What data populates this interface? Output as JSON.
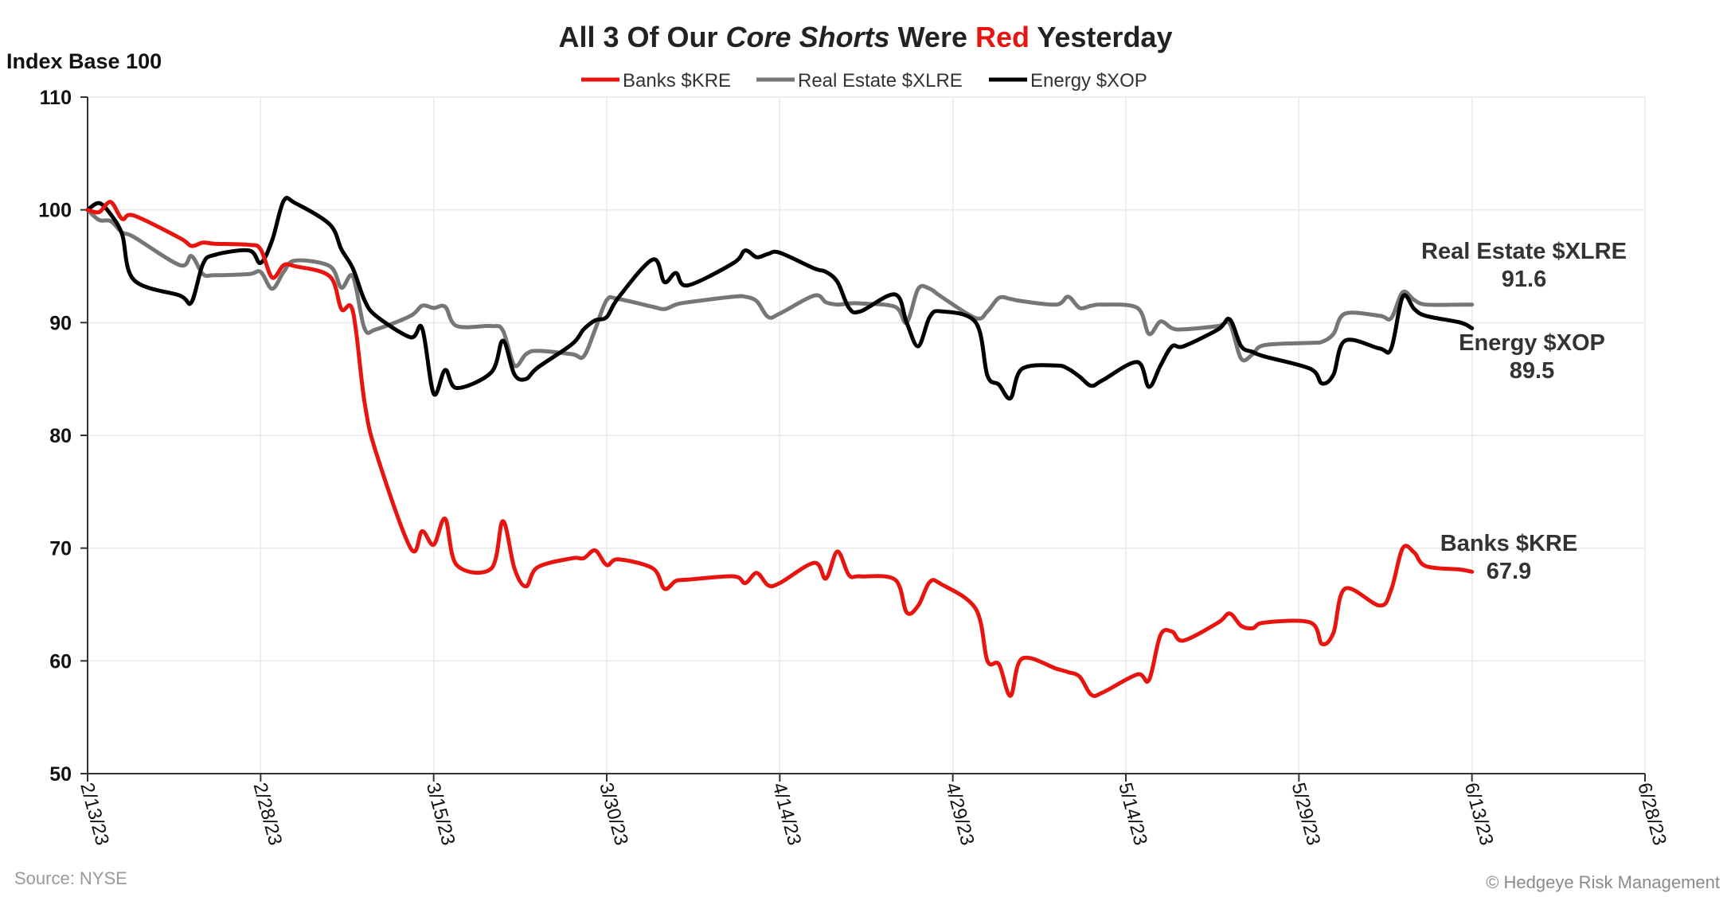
{
  "chart_data": {
    "type": "line",
    "title_parts": [
      {
        "text": "All 3 Of Our ",
        "style": "normal"
      },
      {
        "text": "Core Shorts",
        "style": "italic"
      },
      {
        "text": " Were ",
        "style": "normal"
      },
      {
        "text": "Red",
        "style": "red"
      },
      {
        "text": " Yesterday",
        "style": "normal"
      }
    ],
    "ylabel": "Index Base 100",
    "ylim": [
      50,
      110
    ],
    "yticks": [
      50,
      60,
      70,
      80,
      90,
      100,
      110
    ],
    "xlim": [
      "2023-02-13",
      "2023-06-28"
    ],
    "xticks": [
      {
        "date": "2023-02-13",
        "label": "2/13/23"
      },
      {
        "date": "2023-02-28",
        "label": "2/28/23"
      },
      {
        "date": "2023-03-15",
        "label": "3/15/23"
      },
      {
        "date": "2023-03-30",
        "label": "3/30/23"
      },
      {
        "date": "2023-04-14",
        "label": "4/14/23"
      },
      {
        "date": "2023-04-29",
        "label": "4/29/23"
      },
      {
        "date": "2023-05-14",
        "label": "5/14/23"
      },
      {
        "date": "2023-05-29",
        "label": "5/29/23"
      },
      {
        "date": "2023-06-13",
        "label": "6/13/23"
      },
      {
        "date": "2023-06-28",
        "label": "6/28/23"
      }
    ],
    "grid": true,
    "legend": "top-center",
    "series": [
      {
        "name": "Banks $KRE",
        "color": "#e8140f",
        "end_label": "Banks $KRE",
        "end_value": "67.9",
        "points": [
          [
            "2023-02-13",
            100
          ],
          [
            "2023-02-14",
            99.8
          ],
          [
            "2023-02-15",
            100.7
          ],
          [
            "2023-02-16",
            99.2
          ],
          [
            "2023-02-17",
            99.5
          ],
          [
            "2023-02-21",
            97.5
          ],
          [
            "2023-02-22",
            96.8
          ],
          [
            "2023-02-23",
            97.1
          ],
          [
            "2023-02-24",
            97.0
          ],
          [
            "2023-02-27",
            96.9
          ],
          [
            "2023-02-28",
            96.5
          ],
          [
            "2023-03-01",
            94.0
          ],
          [
            "2023-03-02",
            95.1
          ],
          [
            "2023-03-03",
            95.0
          ],
          [
            "2023-03-06",
            94.1
          ],
          [
            "2023-03-07",
            91.2
          ],
          [
            "2023-03-08",
            91.0
          ],
          [
            "2023-03-09",
            83.0
          ],
          [
            "2023-03-10",
            78.5
          ],
          [
            "2023-03-13",
            70.0
          ],
          [
            "2023-03-14",
            71.5
          ],
          [
            "2023-03-15",
            70.3
          ],
          [
            "2023-03-16",
            72.6
          ],
          [
            "2023-03-17",
            68.5
          ],
          [
            "2023-03-20",
            68.2
          ],
          [
            "2023-03-21",
            72.4
          ],
          [
            "2023-03-22",
            68.2
          ],
          [
            "2023-03-23",
            66.6
          ],
          [
            "2023-03-24",
            68.3
          ],
          [
            "2023-03-27",
            69.1
          ],
          [
            "2023-03-28",
            69.1
          ],
          [
            "2023-03-29",
            69.8
          ],
          [
            "2023-03-30",
            68.5
          ],
          [
            "2023-03-31",
            69.0
          ],
          [
            "2023-04-03",
            68.2
          ],
          [
            "2023-04-04",
            66.4
          ],
          [
            "2023-04-05",
            67.1
          ],
          [
            "2023-04-06",
            67.2
          ],
          [
            "2023-04-10",
            67.5
          ],
          [
            "2023-04-11",
            66.9
          ],
          [
            "2023-04-12",
            67.8
          ],
          [
            "2023-04-13",
            66.7
          ],
          [
            "2023-04-14",
            66.9
          ],
          [
            "2023-04-17",
            68.7
          ],
          [
            "2023-04-18",
            67.3
          ],
          [
            "2023-04-19",
            69.7
          ],
          [
            "2023-04-20",
            67.6
          ],
          [
            "2023-04-21",
            67.5
          ],
          [
            "2023-04-24",
            67.2
          ],
          [
            "2023-04-25",
            64.3
          ],
          [
            "2023-04-26",
            64.9
          ],
          [
            "2023-04-27",
            67.0
          ],
          [
            "2023-04-28",
            66.8
          ],
          [
            "2023-05-01",
            64.6
          ],
          [
            "2023-05-02",
            60.0
          ],
          [
            "2023-05-03",
            59.7
          ],
          [
            "2023-05-04",
            56.9
          ],
          [
            "2023-05-05",
            60.2
          ],
          [
            "2023-05-08",
            59.3
          ],
          [
            "2023-05-09",
            59.0
          ],
          [
            "2023-05-10",
            58.6
          ],
          [
            "2023-05-11",
            57.0
          ],
          [
            "2023-05-12",
            57.2
          ],
          [
            "2023-05-15",
            58.8
          ],
          [
            "2023-05-16",
            58.3
          ],
          [
            "2023-05-17",
            62.3
          ],
          [
            "2023-05-18",
            62.6
          ],
          [
            "2023-05-19",
            61.8
          ],
          [
            "2023-05-22",
            63.4
          ],
          [
            "2023-05-23",
            64.2
          ],
          [
            "2023-05-24",
            63.1
          ],
          [
            "2023-05-25",
            62.9
          ],
          [
            "2023-05-26",
            63.4
          ],
          [
            "2023-05-30",
            63.4
          ],
          [
            "2023-05-31",
            61.5
          ],
          [
            "2023-06-01",
            62.5
          ],
          [
            "2023-06-02",
            66.4
          ],
          [
            "2023-06-05",
            64.9
          ],
          [
            "2023-06-06",
            66.3
          ],
          [
            "2023-06-07",
            70.0
          ],
          [
            "2023-06-08",
            69.6
          ],
          [
            "2023-06-09",
            68.4
          ],
          [
            "2023-06-12",
            68.1
          ],
          [
            "2023-06-13",
            67.9
          ]
        ]
      },
      {
        "name": "Real Estate $XLRE",
        "color": "#767676",
        "end_label": "Real Estate $XLRE",
        "end_value": "91.6",
        "points": [
          [
            "2023-02-13",
            100
          ],
          [
            "2023-02-14",
            99.1
          ],
          [
            "2023-02-15",
            99.0
          ],
          [
            "2023-02-16",
            98.0
          ],
          [
            "2023-02-17",
            97.6
          ],
          [
            "2023-02-21",
            95.1
          ],
          [
            "2023-02-22",
            95.9
          ],
          [
            "2023-02-23",
            94.3
          ],
          [
            "2023-02-24",
            94.2
          ],
          [
            "2023-02-27",
            94.3
          ],
          [
            "2023-02-28",
            94.5
          ],
          [
            "2023-03-01",
            93.0
          ],
          [
            "2023-03-02",
            94.5
          ],
          [
            "2023-03-03",
            95.5
          ],
          [
            "2023-03-06",
            95.0
          ],
          [
            "2023-03-07",
            93.1
          ],
          [
            "2023-03-08",
            94.1
          ],
          [
            "2023-03-09",
            89.5
          ],
          [
            "2023-03-10",
            89.4
          ],
          [
            "2023-03-13",
            90.6
          ],
          [
            "2023-03-14",
            91.5
          ],
          [
            "2023-03-15",
            91.3
          ],
          [
            "2023-03-16",
            91.4
          ],
          [
            "2023-03-17",
            89.7
          ],
          [
            "2023-03-20",
            89.7
          ],
          [
            "2023-03-21",
            89.3
          ],
          [
            "2023-03-22",
            86.2
          ],
          [
            "2023-03-23",
            87.2
          ],
          [
            "2023-03-24",
            87.5
          ],
          [
            "2023-03-27",
            87.2
          ],
          [
            "2023-03-28",
            87.0
          ],
          [
            "2023-03-29",
            89.4
          ],
          [
            "2023-03-30",
            92.0
          ],
          [
            "2023-03-31",
            92.1
          ],
          [
            "2023-04-03",
            91.4
          ],
          [
            "2023-04-04",
            91.2
          ],
          [
            "2023-04-05",
            91.6
          ],
          [
            "2023-04-06",
            91.8
          ],
          [
            "2023-04-10",
            92.3
          ],
          [
            "2023-04-11",
            92.3
          ],
          [
            "2023-04-12",
            91.9
          ],
          [
            "2023-04-13",
            90.5
          ],
          [
            "2023-04-14",
            90.8
          ],
          [
            "2023-04-17",
            92.4
          ],
          [
            "2023-04-18",
            91.8
          ],
          [
            "2023-04-19",
            91.6
          ],
          [
            "2023-04-20",
            91.7
          ],
          [
            "2023-04-21",
            91.7
          ],
          [
            "2023-04-24",
            91.4
          ],
          [
            "2023-04-25",
            90.0
          ],
          [
            "2023-04-26",
            93.0
          ],
          [
            "2023-04-27",
            93.0
          ],
          [
            "2023-04-28",
            92.3
          ],
          [
            "2023-05-01",
            90.4
          ],
          [
            "2023-05-02",
            91.0
          ],
          [
            "2023-05-03",
            92.2
          ],
          [
            "2023-05-04",
            92.1
          ],
          [
            "2023-05-05",
            91.9
          ],
          [
            "2023-05-08",
            91.6
          ],
          [
            "2023-05-09",
            92.3
          ],
          [
            "2023-05-10",
            91.3
          ],
          [
            "2023-05-11",
            91.5
          ],
          [
            "2023-05-12",
            91.6
          ],
          [
            "2023-05-15",
            91.3
          ],
          [
            "2023-05-16",
            89.0
          ],
          [
            "2023-05-17",
            90.1
          ],
          [
            "2023-05-18",
            89.5
          ],
          [
            "2023-05-19",
            89.4
          ],
          [
            "2023-05-22",
            89.7
          ],
          [
            "2023-05-23",
            89.9
          ],
          [
            "2023-05-24",
            86.8
          ],
          [
            "2023-05-25",
            87.2
          ],
          [
            "2023-05-26",
            88.0
          ],
          [
            "2023-05-30",
            88.2
          ],
          [
            "2023-05-31",
            88.3
          ],
          [
            "2023-06-01",
            89.0
          ],
          [
            "2023-06-02",
            90.8
          ],
          [
            "2023-06-05",
            90.6
          ],
          [
            "2023-06-06",
            90.4
          ],
          [
            "2023-06-07",
            92.7
          ],
          [
            "2023-06-08",
            92.0
          ],
          [
            "2023-06-09",
            91.6
          ],
          [
            "2023-06-12",
            91.6
          ],
          [
            "2023-06-13",
            91.6
          ]
        ]
      },
      {
        "name": "Energy $XOP",
        "color": "#000000",
        "end_label": "Energy $XOP",
        "end_value": "89.5",
        "points": [
          [
            "2023-02-13",
            100
          ],
          [
            "2023-02-14",
            100.6
          ],
          [
            "2023-02-15",
            99.6
          ],
          [
            "2023-02-16",
            97.8
          ],
          [
            "2023-02-17",
            93.8
          ],
          [
            "2023-02-21",
            92.4
          ],
          [
            "2023-02-22",
            91.8
          ],
          [
            "2023-02-23",
            95.2
          ],
          [
            "2023-02-24",
            96.0
          ],
          [
            "2023-02-27",
            96.4
          ],
          [
            "2023-02-28",
            95.3
          ],
          [
            "2023-03-01",
            97.3
          ],
          [
            "2023-03-02",
            100.8
          ],
          [
            "2023-03-03",
            100.6
          ],
          [
            "2023-03-06",
            98.7
          ],
          [
            "2023-03-07",
            96.5
          ],
          [
            "2023-03-08",
            94.8
          ],
          [
            "2023-03-09",
            92.0
          ],
          [
            "2023-03-10",
            90.6
          ],
          [
            "2023-03-13",
            88.7
          ],
          [
            "2023-03-14",
            89.5
          ],
          [
            "2023-03-15",
            83.7
          ],
          [
            "2023-03-16",
            85.8
          ],
          [
            "2023-03-17",
            84.2
          ],
          [
            "2023-03-20",
            85.6
          ],
          [
            "2023-03-21",
            88.4
          ],
          [
            "2023-03-22",
            85.4
          ],
          [
            "2023-03-23",
            85.0
          ],
          [
            "2023-03-24",
            86.0
          ],
          [
            "2023-03-27",
            88.1
          ],
          [
            "2023-03-28",
            89.4
          ],
          [
            "2023-03-29",
            90.2
          ],
          [
            "2023-03-30",
            90.5
          ],
          [
            "2023-03-31",
            92.2
          ],
          [
            "2023-04-03",
            95.6
          ],
          [
            "2023-04-04",
            93.6
          ],
          [
            "2023-04-05",
            94.4
          ],
          [
            "2023-04-06",
            93.3
          ],
          [
            "2023-04-10",
            95.3
          ],
          [
            "2023-04-11",
            96.4
          ],
          [
            "2023-04-12",
            95.8
          ],
          [
            "2023-04-13",
            96.1
          ],
          [
            "2023-04-14",
            96.2
          ],
          [
            "2023-04-17",
            94.8
          ],
          [
            "2023-04-18",
            94.5
          ],
          [
            "2023-04-19",
            93.6
          ],
          [
            "2023-04-20",
            91.3
          ],
          [
            "2023-04-21",
            91.0
          ],
          [
            "2023-04-24",
            92.5
          ],
          [
            "2023-04-25",
            90.0
          ],
          [
            "2023-04-26",
            87.9
          ],
          [
            "2023-04-27",
            90.5
          ],
          [
            "2023-04-28",
            91.0
          ],
          [
            "2023-05-01",
            90.0
          ],
          [
            "2023-05-02",
            85.3
          ],
          [
            "2023-05-03",
            84.5
          ],
          [
            "2023-05-04",
            83.3
          ],
          [
            "2023-05-05",
            85.9
          ],
          [
            "2023-05-08",
            86.2
          ],
          [
            "2023-05-09",
            85.9
          ],
          [
            "2023-05-10",
            85.2
          ],
          [
            "2023-05-11",
            84.4
          ],
          [
            "2023-05-12",
            84.9
          ],
          [
            "2023-05-15",
            86.5
          ],
          [
            "2023-05-16",
            84.3
          ],
          [
            "2023-05-17",
            86.2
          ],
          [
            "2023-05-18",
            87.9
          ],
          [
            "2023-05-19",
            87.9
          ],
          [
            "2023-05-22",
            89.4
          ],
          [
            "2023-05-23",
            90.3
          ],
          [
            "2023-05-24",
            87.9
          ],
          [
            "2023-05-25",
            87.4
          ],
          [
            "2023-05-26",
            87.0
          ],
          [
            "2023-05-30",
            85.9
          ],
          [
            "2023-05-31",
            84.6
          ],
          [
            "2023-06-01",
            85.4
          ],
          [
            "2023-06-02",
            88.4
          ],
          [
            "2023-06-05",
            87.7
          ],
          [
            "2023-06-06",
            87.7
          ],
          [
            "2023-06-07",
            92.3
          ],
          [
            "2023-06-08",
            91.2
          ],
          [
            "2023-06-09",
            90.6
          ],
          [
            "2023-06-12",
            90.0
          ],
          [
            "2023-06-13",
            89.5
          ]
        ]
      }
    ]
  },
  "footer": {
    "source": "Source: NYSE",
    "copyright": "© Hedgeye Risk Management"
  },
  "colors": {
    "title_red": "#e8140f",
    "grid": "#e9e9e9",
    "axis": "#333333"
  }
}
